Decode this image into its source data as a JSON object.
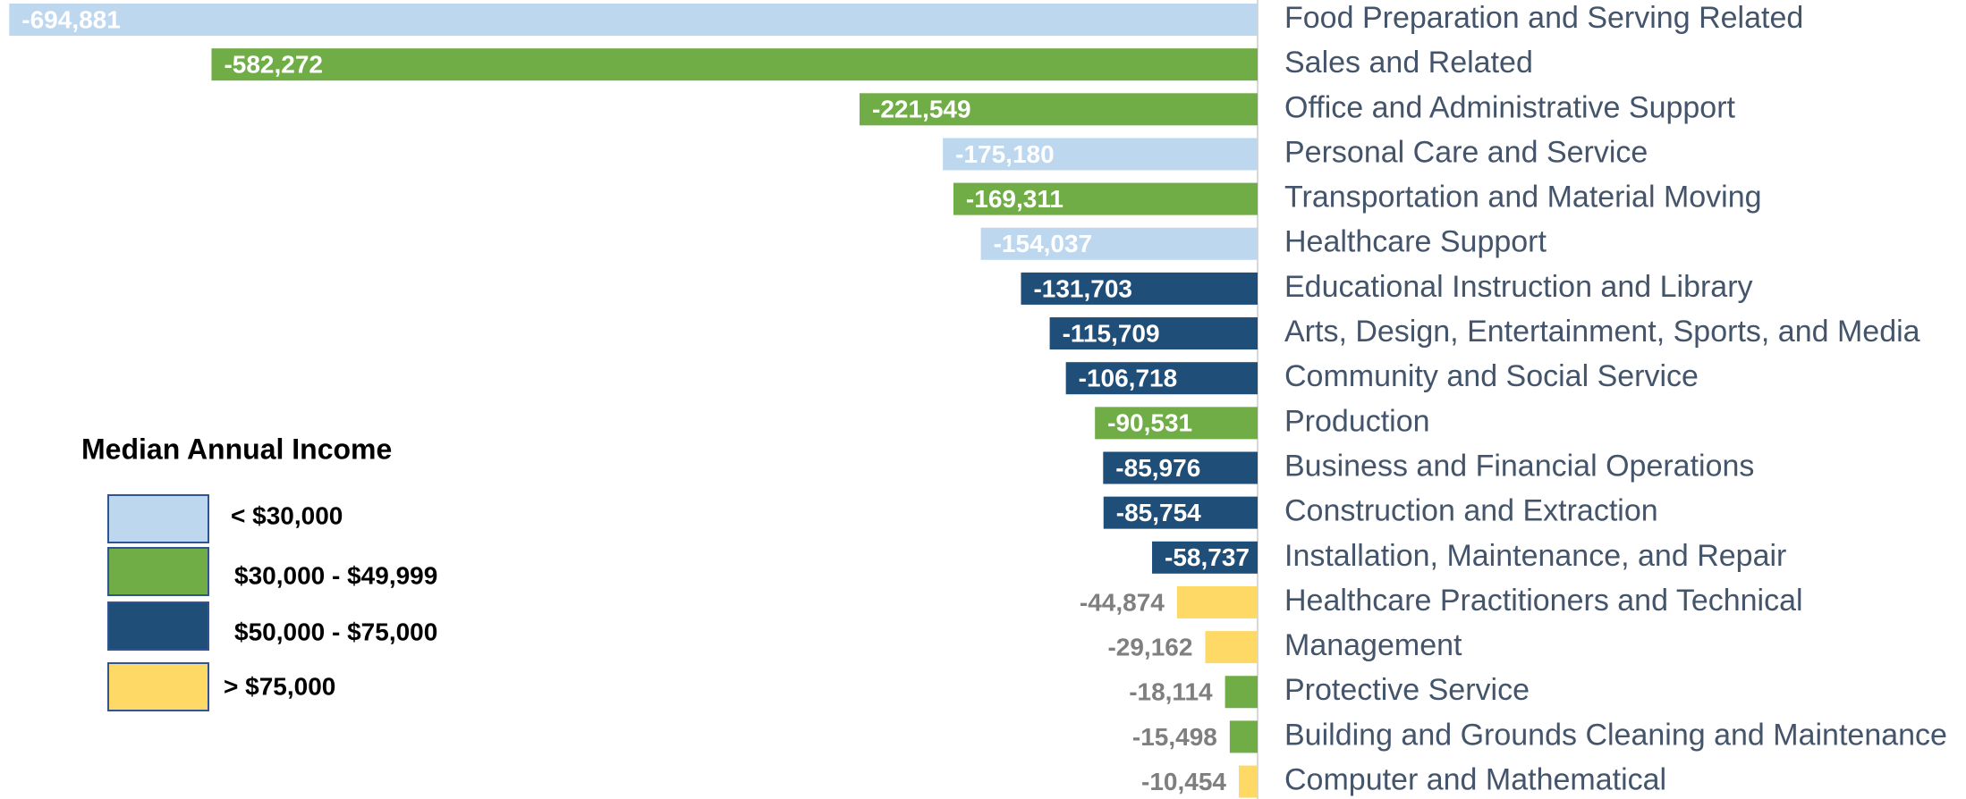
{
  "chart_data": {
    "type": "bar",
    "orientation": "horizontal",
    "categories": [
      "Food Preparation and Serving Related",
      "Sales and Related",
      "Office and Administrative Support",
      "Personal Care and Service",
      "Transportation and Material Moving",
      "Healthcare Support",
      "Educational Instruction and Library",
      "Arts, Design, Entertainment, Sports, and Media",
      "Community and Social Service",
      "Production",
      "Business and Financial Operations",
      "Construction and Extraction",
      "Installation, Maintenance, and Repair",
      "Healthcare Practitioners and Technical",
      "Management",
      "Protective Service",
      "Building and Grounds Cleaning and Maintenance",
      "Computer and Mathematical"
    ],
    "legend_title": "Median Annual Income",
    "series": [
      {
        "name": "< $30,000",
        "color": "#bdd7ee",
        "values": [
          -694881,
          null,
          null,
          -175180,
          null,
          -154037,
          null,
          null,
          null,
          null,
          null,
          null,
          null,
          null,
          null,
          null,
          null,
          null
        ],
        "value_labels": [
          "-694,881",
          null,
          null,
          "-175,180",
          null,
          "-154,037",
          null,
          null,
          null,
          null,
          null,
          null,
          null,
          null,
          null,
          null,
          null,
          null
        ]
      },
      {
        "name": "$30,000 - $49,999",
        "color": "#70ad47",
        "values": [
          null,
          -582272,
          -221549,
          null,
          -169311,
          null,
          null,
          null,
          null,
          -90531,
          null,
          null,
          null,
          null,
          null,
          -18114,
          -15498,
          null
        ],
        "value_labels": [
          null,
          "-582,272",
          "-221,549",
          null,
          "-169,311",
          null,
          null,
          null,
          null,
          "-90,531",
          null,
          null,
          null,
          null,
          null,
          "-18,114",
          "-15,498",
          null
        ]
      },
      {
        "name": "$50,000 - $75,000",
        "color": "#1f4e79",
        "values": [
          null,
          null,
          null,
          null,
          null,
          null,
          -131703,
          -115709,
          -106718,
          null,
          -85976,
          -85754,
          -58737,
          null,
          null,
          null,
          null,
          null
        ],
        "value_labels": [
          null,
          null,
          null,
          null,
          null,
          null,
          "-131,703",
          "-115,709",
          "-106,718",
          null,
          "-85,976",
          "-85,754",
          "-58,737",
          null,
          null,
          null,
          null,
          null
        ]
      },
      {
        "name": "> $75,000",
        "color": "#ffd966",
        "values": [
          null,
          null,
          null,
          null,
          null,
          null,
          null,
          null,
          null,
          null,
          null,
          null,
          null,
          -44874,
          -29162,
          null,
          null,
          -10454
        ],
        "value_labels": [
          null,
          null,
          null,
          null,
          null,
          null,
          null,
          null,
          null,
          null,
          null,
          null,
          null,
          "-44,874",
          "-29,162",
          null,
          null,
          "-10,454"
        ]
      }
    ],
    "xlim": [
      -700000,
      0
    ]
  }
}
